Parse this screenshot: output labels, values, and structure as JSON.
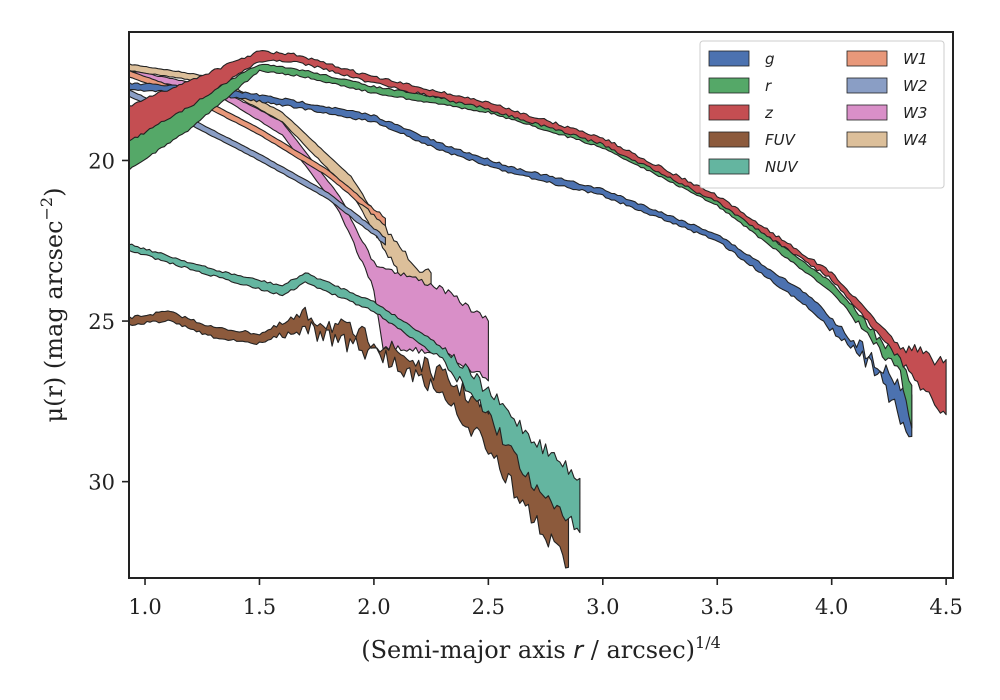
{
  "chart_data": {
    "type": "area",
    "title": "",
    "xlabel": "(Semi-major axis r / arcsec)",
    "xlabel_italic_part": "r",
    "xlabel_sup": "1/4",
    "ylabel_main": "μ(r) (mag arcsec",
    "ylabel_sup": "−2",
    "ylabel_close": ")",
    "xlim": [
      0.93,
      4.53
    ],
    "ylim": [
      33.0,
      16.0
    ],
    "y_inverted": true,
    "xticks": [
      1.0,
      1.5,
      2.0,
      2.5,
      3.0,
      3.5,
      4.0,
      4.5
    ],
    "xtick_labels": [
      "1.0",
      "1.5",
      "2.0",
      "2.5",
      "3.0",
      "3.5",
      "4.0",
      "4.5"
    ],
    "yticks": [
      20,
      25,
      30
    ],
    "ytick_labels": [
      "20",
      "25",
      "30"
    ],
    "grid": false,
    "legend": {
      "placement": "top-right",
      "columns": 2
    },
    "series": [
      {
        "name": "g",
        "color": "#4c72b0",
        "noise": 0.25,
        "noise_start": 3.9,
        "upper": [
          [
            0.93,
            17.6
          ],
          [
            1.2,
            17.7
          ],
          [
            1.45,
            17.9
          ],
          [
            1.7,
            18.2
          ],
          [
            2.0,
            18.6
          ],
          [
            2.3,
            19.5
          ],
          [
            2.6,
            20.2
          ],
          [
            3.0,
            20.9
          ],
          [
            3.5,
            22.3
          ],
          [
            3.9,
            24.2
          ],
          [
            4.2,
            26.3
          ],
          [
            4.35,
            27.3
          ]
        ],
        "lower": [
          [
            4.35,
            28.7
          ],
          [
            4.2,
            26.6
          ],
          [
            3.9,
            24.6
          ],
          [
            3.5,
            22.5
          ],
          [
            3.0,
            21.1
          ],
          [
            2.6,
            20.4
          ],
          [
            2.3,
            19.7
          ],
          [
            2.0,
            18.8
          ],
          [
            1.7,
            18.4
          ],
          [
            1.45,
            18.1
          ],
          [
            1.2,
            17.9
          ],
          [
            0.93,
            17.8
          ]
        ]
      },
      {
        "name": "r",
        "color": "#55a868",
        "noise": 0.2,
        "noise_start": 4.0,
        "upper": [
          [
            0.93,
            19.2
          ],
          [
            1.2,
            18.2
          ],
          [
            1.5,
            17.0
          ],
          [
            1.7,
            17.2
          ],
          [
            2.0,
            17.7
          ],
          [
            2.5,
            18.3
          ],
          [
            3.0,
            19.4
          ],
          [
            3.5,
            21.2
          ],
          [
            4.0,
            23.8
          ],
          [
            4.3,
            26.3
          ],
          [
            4.35,
            27.0
          ]
        ],
        "lower": [
          [
            4.35,
            28.3
          ],
          [
            4.3,
            26.6
          ],
          [
            4.0,
            24.1
          ],
          [
            3.5,
            21.4
          ],
          [
            3.0,
            19.6
          ],
          [
            2.5,
            18.5
          ],
          [
            2.0,
            17.9
          ],
          [
            1.7,
            17.4
          ],
          [
            1.5,
            17.2
          ],
          [
            1.2,
            19.0
          ],
          [
            0.93,
            20.3
          ]
        ]
      },
      {
        "name": "z",
        "color": "#c44e52",
        "noise": 0.3,
        "noise_start": 4.2,
        "upper": [
          [
            0.93,
            18.3
          ],
          [
            1.2,
            17.5
          ],
          [
            1.5,
            16.6
          ],
          [
            1.65,
            16.7
          ],
          [
            2.0,
            17.4
          ],
          [
            2.5,
            18.2
          ],
          [
            3.0,
            19.3
          ],
          [
            3.5,
            21.1
          ],
          [
            4.0,
            23.5
          ],
          [
            4.3,
            25.8
          ],
          [
            4.5,
            26.2
          ]
        ],
        "lower": [
          [
            4.5,
            28.0
          ],
          [
            4.3,
            26.2
          ],
          [
            4.0,
            23.7
          ],
          [
            3.5,
            21.3
          ],
          [
            3.0,
            19.5
          ],
          [
            2.5,
            18.4
          ],
          [
            2.0,
            17.6
          ],
          [
            1.65,
            16.9
          ],
          [
            1.5,
            16.9
          ],
          [
            1.2,
            18.3
          ],
          [
            0.93,
            19.4
          ]
        ]
      },
      {
        "name": "FUV",
        "color": "#8c5a3c",
        "noise": 0.3,
        "noise_start": 1.5,
        "upper": [
          [
            0.93,
            24.9
          ],
          [
            1.1,
            24.7
          ],
          [
            1.3,
            25.2
          ],
          [
            1.5,
            25.4
          ],
          [
            1.7,
            24.8
          ],
          [
            2.0,
            25.6
          ],
          [
            2.3,
            26.7
          ],
          [
            2.5,
            27.8
          ],
          [
            2.7,
            29.6
          ],
          [
            2.85,
            30.7
          ]
        ],
        "lower": [
          [
            2.85,
            32.6
          ],
          [
            2.7,
            31.2
          ],
          [
            2.5,
            29.0
          ],
          [
            2.3,
            27.2
          ],
          [
            2.0,
            26.0
          ],
          [
            1.7,
            25.2
          ],
          [
            1.5,
            25.7
          ],
          [
            1.3,
            25.5
          ],
          [
            1.1,
            25.0
          ],
          [
            0.93,
            25.1
          ]
        ]
      },
      {
        "name": "NUV",
        "color": "#64b5a0",
        "noise": 0.22,
        "noise_start": 2.2,
        "upper": [
          [
            0.93,
            22.6
          ],
          [
            1.3,
            23.4
          ],
          [
            1.6,
            23.9
          ],
          [
            1.7,
            23.5
          ],
          [
            2.0,
            24.4
          ],
          [
            2.3,
            25.8
          ],
          [
            2.5,
            27.2
          ],
          [
            2.7,
            28.7
          ],
          [
            2.9,
            29.9
          ]
        ],
        "lower": [
          [
            2.9,
            31.5
          ],
          [
            2.7,
            30.1
          ],
          [
            2.5,
            28.0
          ],
          [
            2.3,
            26.2
          ],
          [
            2.0,
            24.7
          ],
          [
            1.7,
            23.8
          ],
          [
            1.6,
            24.2
          ],
          [
            1.3,
            23.6
          ],
          [
            0.93,
            22.8
          ]
        ]
      },
      {
        "name": "W1",
        "color": "#e8987a",
        "noise": 0.06,
        "noise_start": 1.8,
        "upper": [
          [
            0.93,
            17.2
          ],
          [
            1.2,
            17.9
          ],
          [
            1.5,
            19.0
          ],
          [
            1.8,
            20.3
          ],
          [
            2.05,
            21.8
          ]
        ],
        "lower": [
          [
            2.05,
            22.0
          ],
          [
            1.8,
            20.5
          ],
          [
            1.5,
            19.2
          ],
          [
            1.2,
            18.1
          ],
          [
            0.93,
            17.4
          ]
        ]
      },
      {
        "name": "W2",
        "color": "#8a9ec5",
        "noise": 0.06,
        "noise_start": 1.8,
        "upper": [
          [
            0.93,
            17.8
          ],
          [
            1.2,
            18.7
          ],
          [
            1.5,
            19.8
          ],
          [
            1.8,
            21.0
          ],
          [
            2.05,
            22.4
          ]
        ],
        "lower": [
          [
            2.05,
            22.6
          ],
          [
            1.8,
            21.2
          ],
          [
            1.5,
            20.0
          ],
          [
            1.2,
            18.9
          ],
          [
            0.93,
            18.0
          ]
        ]
      },
      {
        "name": "W3",
        "color": "#d98fc8",
        "noise": 0.1,
        "noise_start": 1.8,
        "upper": [
          [
            0.93,
            17.2
          ],
          [
            1.3,
            17.7
          ],
          [
            1.6,
            18.8
          ],
          [
            1.85,
            21.1
          ],
          [
            2.0,
            23.2
          ],
          [
            2.3,
            24.0
          ],
          [
            2.5,
            25.0
          ]
        ],
        "lower": [
          [
            2.5,
            26.8
          ],
          [
            2.3,
            26.0
          ],
          [
            2.04,
            25.8
          ],
          [
            2.0,
            24.0
          ],
          [
            1.85,
            21.6
          ],
          [
            1.6,
            19.2
          ],
          [
            1.3,
            17.9
          ],
          [
            0.93,
            17.4
          ]
        ]
      },
      {
        "name": "W4",
        "color": "#dcbf9a",
        "noise": 0.1,
        "noise_start": 1.85,
        "upper": [
          [
            0.93,
            17.0
          ],
          [
            1.3,
            17.4
          ],
          [
            1.6,
            18.5
          ],
          [
            1.9,
            20.5
          ],
          [
            2.0,
            21.6
          ],
          [
            2.1,
            22.6
          ],
          [
            2.2,
            23.4
          ],
          [
            2.25,
            23.5
          ]
        ],
        "lower": [
          [
            2.25,
            24.0
          ],
          [
            2.2,
            24.8
          ],
          [
            2.17,
            25.4
          ],
          [
            2.1,
            23.4
          ],
          [
            2.0,
            22.2
          ],
          [
            1.9,
            21.0
          ],
          [
            1.6,
            18.8
          ],
          [
            1.3,
            17.6
          ],
          [
            0.93,
            17.2
          ]
        ]
      }
    ]
  }
}
